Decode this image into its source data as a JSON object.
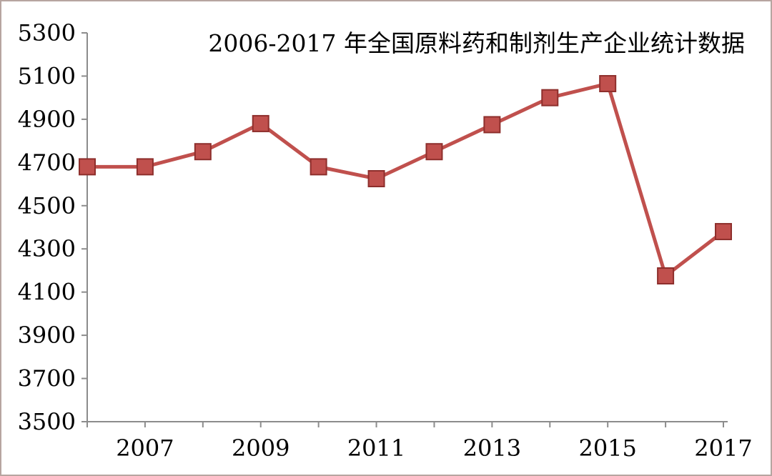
{
  "chart_data": {
    "type": "line",
    "title": "2006-2017 年全国原料药和制剂生产企业统计数据",
    "xlabel": "",
    "ylabel": "",
    "x": [
      2006,
      2007,
      2008,
      2009,
      2010,
      2011,
      2012,
      2013,
      2014,
      2015,
      2016,
      2017
    ],
    "x_tick_labels": [
      "2007",
      "2009",
      "2011",
      "2013",
      "2015",
      "2017"
    ],
    "y_tick_labels": [
      "3500",
      "3700",
      "3900",
      "4100",
      "4300",
      "4500",
      "4700",
      "4900",
      "5100",
      "5300"
    ],
    "ylim": [
      3500,
      5300
    ],
    "grid": false,
    "legend": "none",
    "series": [
      {
        "values": [
          4680,
          4680,
          4750,
          4880,
          4680,
          4625,
          4750,
          4875,
          5000,
          5065,
          4175,
          4380
        ],
        "color": "#c0504d",
        "marker": "square"
      }
    ]
  }
}
